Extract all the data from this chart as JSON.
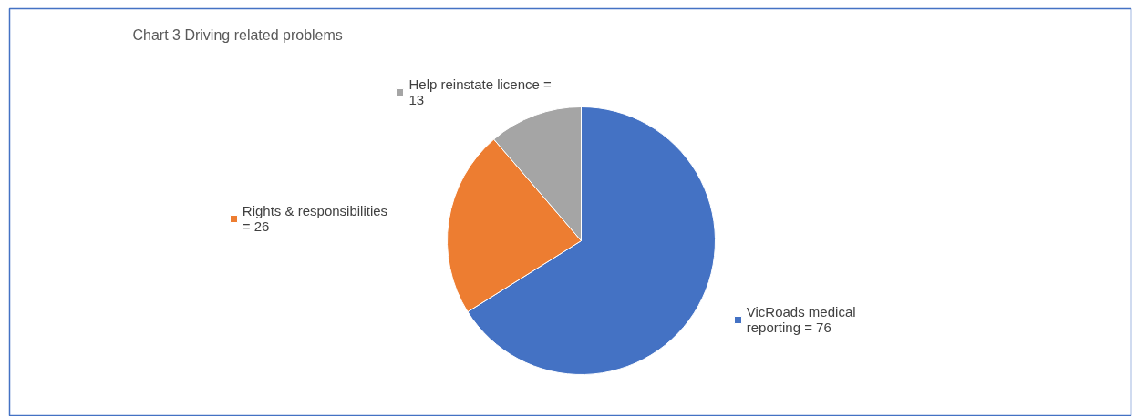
{
  "chart_data": {
    "type": "pie",
    "title": "Chart 3  Driving related problems",
    "categories": [
      "VicRoads medical reporting",
      "Rights & responsibilities",
      "Help reinstate licence"
    ],
    "values": [
      76,
      26,
      13
    ],
    "colors": [
      "#4472c4",
      "#ed7d31",
      "#a5a5a5"
    ],
    "value_labels": [
      "= 76",
      "= 26",
      "= 13"
    ],
    "legend": "top left"
  }
}
